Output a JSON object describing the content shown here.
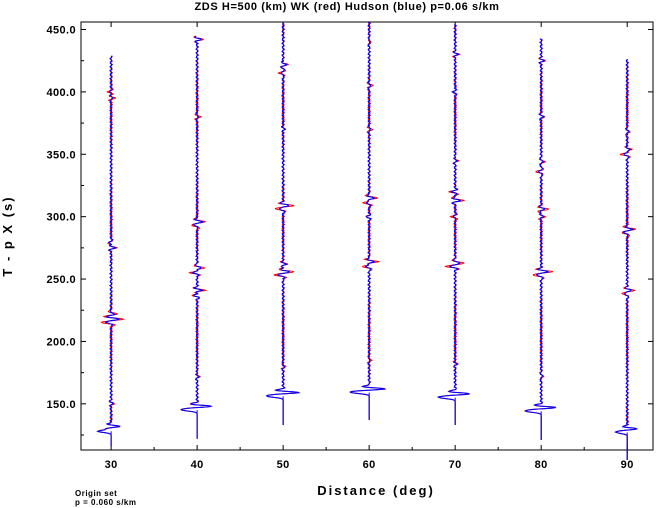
{
  "chart_data": {
    "type": "line",
    "title": "ZDS H=500 (km) WK (red) Hudson (blue) p=0.06 s/km",
    "xlabel": "Distance (deg)",
    "ylabel": "T - p X (s)",
    "xlim": [
      26.5,
      93.0
    ],
    "ylim": [
      113.0,
      456.0
    ],
    "x_ticks": [
      30,
      40,
      50,
      60,
      70,
      80,
      90
    ],
    "y_ticks": [
      150.0,
      200.0,
      250.0,
      300.0,
      350.0,
      400.0,
      450.0
    ],
    "y_tick_labels": [
      "150.0",
      "200.0",
      "250.0",
      "300.0",
      "350.0",
      "400.0",
      "450.0"
    ],
    "series": [
      {
        "name": "WK",
        "color": "#ff0000"
      },
      {
        "name": "Hudson",
        "color": "#0000ff"
      }
    ],
    "traces": [
      {
        "distance": 30,
        "t_start": 116,
        "t_end": 429,
        "first_arrival": 128,
        "arrivals": [
          [
            128,
            -2.2
          ],
          [
            132,
            1.3
          ],
          [
            150,
            0.4
          ],
          [
            215,
            -1.0
          ],
          [
            218,
            1.5
          ],
          [
            222,
            0.8
          ],
          [
            275,
            0.8
          ],
          [
            279,
            -0.5
          ],
          [
            395,
            0.5
          ],
          [
            400,
            -0.4
          ]
        ]
      },
      {
        "distance": 40,
        "t_start": 122,
        "t_end": 445,
        "first_arrival": 145,
        "arrivals": [
          [
            145,
            -2.3
          ],
          [
            148,
            2.3
          ],
          [
            172,
            0.3
          ],
          [
            237,
            -0.7
          ],
          [
            241,
            1.0
          ],
          [
            255,
            -1.0
          ],
          [
            259,
            1.1
          ],
          [
            293,
            -0.6
          ],
          [
            296,
            1.0
          ],
          [
            380,
            0.4
          ],
          [
            442,
            0.8
          ]
        ]
      },
      {
        "distance": 50,
        "t_start": 133,
        "t_end": 455,
        "first_arrival": 156,
        "arrivals": [
          [
            156,
            -2.4
          ],
          [
            159,
            2.5
          ],
          [
            180,
            0.3
          ],
          [
            253,
            -1.0
          ],
          [
            256,
            1.2
          ],
          [
            262,
            0.5
          ],
          [
            306,
            -0.8
          ],
          [
            309,
            1.2
          ],
          [
            370,
            0.3
          ],
          [
            415,
            -0.6
          ],
          [
            422,
            0.7
          ]
        ]
      },
      {
        "distance": 60,
        "t_start": 137,
        "t_end": 456,
        "first_arrival": 159,
        "arrivals": [
          [
            159,
            -2.6
          ],
          [
            162,
            2.6
          ],
          [
            185,
            0.3
          ],
          [
            260,
            -1.0
          ],
          [
            264,
            1.2
          ],
          [
            300,
            -0.5
          ],
          [
            311,
            -0.8
          ],
          [
            315,
            1.2
          ],
          [
            370,
            0.4
          ],
          [
            405,
            0.5
          ],
          [
            440,
            0.3
          ]
        ]
      },
      {
        "distance": 70,
        "t_start": 133,
        "t_end": 454,
        "first_arrival": 155,
        "arrivals": [
          [
            155,
            -2.4
          ],
          [
            158,
            2.4
          ],
          [
            182,
            0.3
          ],
          [
            260,
            -1.0
          ],
          [
            263,
            1.1
          ],
          [
            300,
            -0.5
          ],
          [
            313,
            1.2
          ],
          [
            320,
            -0.7
          ],
          [
            345,
            0.4
          ],
          [
            400,
            -0.4
          ],
          [
            430,
            0.5
          ]
        ]
      },
      {
        "distance": 80,
        "t_start": 121,
        "t_end": 443,
        "first_arrival": 144,
        "arrivals": [
          [
            144,
            -2.3
          ],
          [
            147,
            2.3
          ],
          [
            172,
            0.4
          ],
          [
            253,
            -1.0
          ],
          [
            256,
            1.3
          ],
          [
            300,
            0.5
          ],
          [
            306,
            0.9
          ],
          [
            336,
            -0.8
          ],
          [
            344,
            0.6
          ],
          [
            380,
            0.5
          ],
          [
            425,
            0.5
          ]
        ]
      },
      {
        "distance": 90,
        "t_start": 105,
        "t_end": 426,
        "first_arrival": 127,
        "arrivals": [
          [
            127,
            -1.6
          ],
          [
            130,
            1.5
          ],
          [
            238,
            -0.6
          ],
          [
            241,
            0.8
          ],
          [
            287,
            -0.6
          ],
          [
            290,
            1.0
          ],
          [
            350,
            -1.0
          ],
          [
            354,
            0.6
          ],
          [
            368,
            0.4
          ]
        ]
      }
    ]
  },
  "footer": {
    "line1": "Origin set",
    "line2": "p = 0.060 s/km"
  }
}
